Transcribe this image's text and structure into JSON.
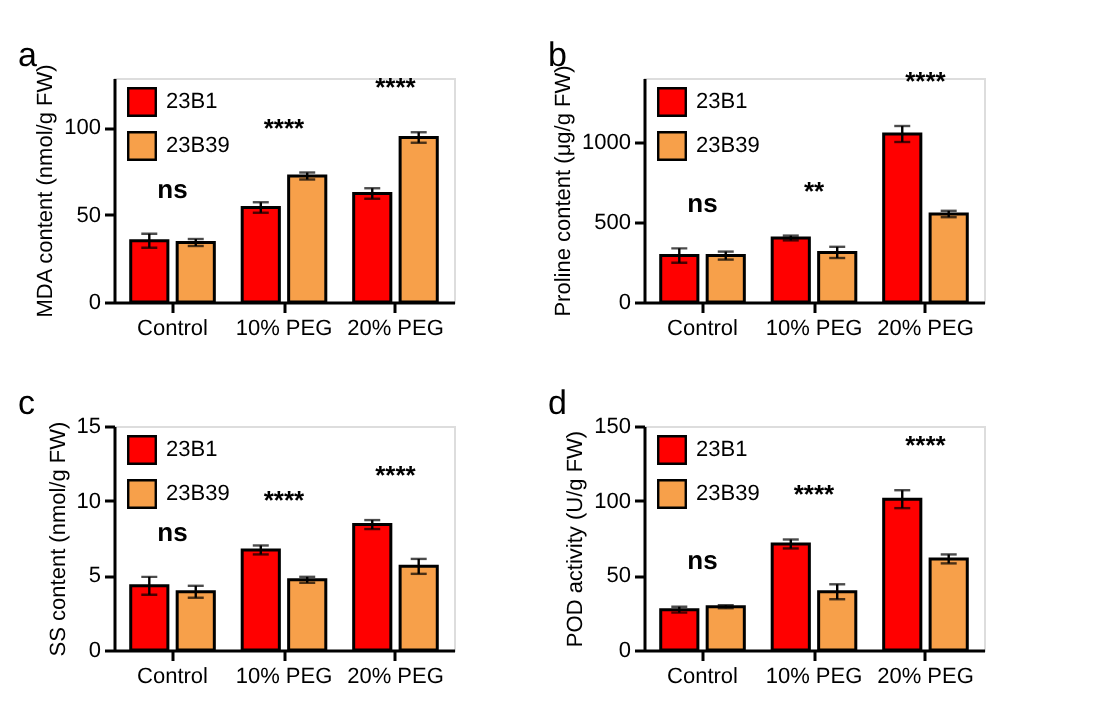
{
  "chart_data": [
    {
      "type": "bar",
      "annotations": [
        "a",
        "ns",
        "****",
        "****"
      ],
      "ylabel": "MDA content (nmol/g FW)",
      "categories": [
        "Control",
        "10% PEG",
        "20% PEG"
      ],
      "ylim": [
        0,
        128
      ],
      "yticks": [
        0,
        50,
        100
      ],
      "grid": false,
      "legend": "top left",
      "series": [
        {
          "name": "23B1",
          "color": "#ff0000",
          "values": [
            35,
            54,
            62
          ],
          "errors": [
            4,
            3,
            3
          ]
        },
        {
          "name": "23B39",
          "color": "#f7a04a",
          "values": [
            34,
            72,
            94
          ],
          "errors": [
            2,
            2,
            3
          ]
        }
      ]
    },
    {
      "type": "bar",
      "annotations": [
        "b",
        "ns",
        "**",
        "****"
      ],
      "ylabel": "Proline content (μg/g FW)",
      "categories": [
        "Control",
        "10% PEG",
        "20% PEG"
      ],
      "ylim": [
        0,
        1400
      ],
      "yticks": [
        0,
        500,
        1000
      ],
      "grid": false,
      "legend": "top left",
      "series": [
        {
          "name": "23B1",
          "color": "#ff0000",
          "values": [
            290,
            400,
            1050
          ],
          "errors": [
            45,
            15,
            50
          ]
        },
        {
          "name": "23B39",
          "color": "#f7a04a",
          "values": [
            290,
            310,
            550
          ],
          "errors": [
            25,
            35,
            20
          ]
        }
      ]
    },
    {
      "type": "bar",
      "annotations": [
        "c",
        "ns",
        "****",
        "****"
      ],
      "ylabel": "SS content (nmol/g FW)",
      "categories": [
        "Control",
        "10% PEG",
        "20% PEG"
      ],
      "ylim": [
        0,
        15
      ],
      "yticks": [
        0,
        5,
        10,
        15
      ],
      "grid": false,
      "legend": "top left",
      "series": [
        {
          "name": "23B1",
          "color": "#ff0000",
          "values": [
            4.3,
            6.7,
            8.4
          ],
          "errors": [
            0.6,
            0.3,
            0.3
          ]
        },
        {
          "name": "23B39",
          "color": "#f7a04a",
          "values": [
            3.9,
            4.7,
            5.6
          ],
          "errors": [
            0.4,
            0.2,
            0.5
          ]
        }
      ]
    },
    {
      "type": "bar",
      "annotations": [
        "d",
        "ns",
        "****",
        "****"
      ],
      "ylabel": "POD activity (U/g FW)",
      "categories": [
        "Control",
        "10% PEG",
        "20% PEG"
      ],
      "ylim": [
        0,
        150
      ],
      "yticks": [
        0,
        50,
        100,
        150
      ],
      "grid": false,
      "legend": "top left",
      "series": [
        {
          "name": "23B1",
          "color": "#ff0000",
          "values": [
            27,
            71,
            101
          ],
          "errors": [
            2,
            3,
            6
          ]
        },
        {
          "name": "23B39",
          "color": "#f7a04a",
          "values": [
            29,
            39,
            61
          ],
          "errors": [
            1,
            5,
            3
          ]
        }
      ]
    }
  ]
}
